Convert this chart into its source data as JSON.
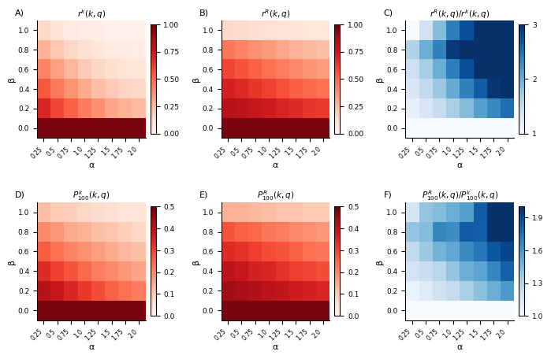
{
  "alpha_values": [
    0.25,
    0.5,
    0.75,
    1.0,
    1.25,
    1.5,
    1.75,
    2.0
  ],
  "beta_values": [
    0.0,
    0.2,
    0.4,
    0.6,
    0.8,
    1.0
  ],
  "rk_data": [
    [
      0.96,
      0.96,
      0.96,
      0.96,
      0.96,
      0.96,
      0.96,
      0.96
    ],
    [
      0.7,
      0.6,
      0.52,
      0.44,
      0.38,
      0.32,
      0.28,
      0.25
    ],
    [
      0.55,
      0.45,
      0.37,
      0.3,
      0.24,
      0.2,
      0.17,
      0.15
    ],
    [
      0.42,
      0.33,
      0.26,
      0.2,
      0.16,
      0.13,
      0.11,
      0.09
    ],
    [
      0.28,
      0.21,
      0.16,
      0.12,
      0.09,
      0.07,
      0.06,
      0.05
    ],
    [
      0.15,
      0.1,
      0.07,
      0.05,
      0.04,
      0.03,
      0.02,
      0.02
    ]
  ],
  "rR_data": [
    [
      0.96,
      0.96,
      0.96,
      0.96,
      0.96,
      0.96,
      0.96,
      0.96
    ],
    [
      0.82,
      0.8,
      0.77,
      0.74,
      0.71,
      0.68,
      0.65,
      0.63
    ],
    [
      0.72,
      0.69,
      0.65,
      0.61,
      0.57,
      0.53,
      0.5,
      0.47
    ],
    [
      0.6,
      0.56,
      0.52,
      0.48,
      0.44,
      0.4,
      0.37,
      0.34
    ],
    [
      0.46,
      0.42,
      0.38,
      0.35,
      0.31,
      0.28,
      0.26,
      0.24
    ],
    [
      0.15,
      0.14,
      0.13,
      0.12,
      0.11,
      0.1,
      0.09,
      0.09
    ]
  ],
  "ratio_r_data": [
    [
      1.0,
      1.0,
      1.0,
      1.0,
      1.0,
      1.0,
      1.0,
      1.0
    ],
    [
      1.17,
      1.33,
      1.48,
      1.68,
      1.87,
      2.13,
      2.32,
      2.52
    ],
    [
      1.31,
      1.53,
      1.76,
      2.03,
      2.38,
      2.65,
      2.94,
      3.0
    ],
    [
      1.43,
      1.7,
      2.0,
      2.4,
      2.75,
      3.0,
      3.0,
      3.0
    ],
    [
      1.64,
      2.0,
      2.38,
      2.92,
      3.0,
      3.0,
      3.0,
      3.0
    ],
    [
      1.0,
      1.4,
      1.86,
      2.4,
      2.75,
      3.0,
      3.0,
      3.0
    ]
  ],
  "Pk_data": [
    [
      0.48,
      0.48,
      0.48,
      0.48,
      0.48,
      0.48,
      0.48,
      0.48
    ],
    [
      0.41,
      0.38,
      0.35,
      0.32,
      0.29,
      0.26,
      0.24,
      0.22
    ],
    [
      0.34,
      0.31,
      0.28,
      0.25,
      0.22,
      0.2,
      0.18,
      0.16
    ],
    [
      0.27,
      0.24,
      0.21,
      0.19,
      0.17,
      0.15,
      0.13,
      0.12
    ],
    [
      0.2,
      0.18,
      0.15,
      0.14,
      0.12,
      0.11,
      0.09,
      0.08
    ],
    [
      0.12,
      0.1,
      0.09,
      0.08,
      0.07,
      0.06,
      0.05,
      0.05
    ]
  ],
  "PR_data": [
    [
      0.48,
      0.48,
      0.48,
      0.48,
      0.48,
      0.48,
      0.48,
      0.48
    ],
    [
      0.44,
      0.43,
      0.42,
      0.4,
      0.39,
      0.37,
      0.36,
      0.35
    ],
    [
      0.4,
      0.38,
      0.36,
      0.35,
      0.33,
      0.31,
      0.3,
      0.29
    ],
    [
      0.34,
      0.33,
      0.31,
      0.29,
      0.28,
      0.26,
      0.24,
      0.23
    ],
    [
      0.28,
      0.26,
      0.25,
      0.23,
      0.22,
      0.2,
      0.19,
      0.18
    ],
    [
      0.14,
      0.14,
      0.13,
      0.12,
      0.11,
      0.11,
      0.1,
      0.1
    ]
  ],
  "ratio_P_data": [
    [
      1.0,
      1.0,
      1.0,
      1.0,
      1.0,
      1.0,
      1.0,
      1.0
    ],
    [
      1.07,
      1.13,
      1.2,
      1.25,
      1.34,
      1.42,
      1.5,
      1.59
    ],
    [
      1.18,
      1.23,
      1.29,
      1.4,
      1.5,
      1.55,
      1.67,
      1.81
    ],
    [
      1.26,
      1.38,
      1.48,
      1.53,
      1.65,
      1.73,
      1.85,
      1.92
    ],
    [
      1.4,
      1.44,
      1.67,
      1.64,
      1.83,
      1.82,
      2.11,
      2.25
    ],
    [
      1.17,
      1.4,
      1.44,
      1.5,
      1.57,
      1.83,
      2.0,
      2.0
    ]
  ],
  "panel_labels": [
    "A)",
    "B)",
    "C)",
    "D)",
    "E)",
    "F)"
  ],
  "panel_titles_raw": [
    "r^k(k, q)",
    "r^R(k, q)",
    "r^R(k, q)/r^k(k, q)",
    "P^k_100(k, q)",
    "P^R_100(k, q)",
    "P^R_100(k, q)/P^k_100(k, q)"
  ],
  "cbar_ticks_AB": [
    0.0,
    0.25,
    0.5,
    0.75,
    1.0
  ],
  "cbar_ticks_C": [
    1,
    2,
    3
  ],
  "cbar_ticks_DE": [
    0.0,
    0.1,
    0.2,
    0.3,
    0.4,
    0.5
  ],
  "cbar_ticks_F": [
    1.0,
    1.3,
    1.6,
    1.9
  ],
  "alpha_tick_labels": [
    "0.25",
    "0.5",
    "0.75",
    "1.0",
    "1.25",
    "1.5",
    "1.75",
    "2.0"
  ],
  "beta_tick_labels": [
    "0.0",
    "0.2",
    "0.4",
    "0.6",
    "0.8",
    "1.0"
  ],
  "vmin_AB": 0.0,
  "vmax_AB": 1.0,
  "vmin_C": 1.0,
  "vmax_C": 3.0,
  "vmin_DE": 0.0,
  "vmax_DE": 0.5,
  "vmin_F": 1.0,
  "vmax_F": 2.0,
  "cmap_red": "Reds",
  "cmap_blue": "Blues",
  "xlabel": "α",
  "ylabel": "β"
}
